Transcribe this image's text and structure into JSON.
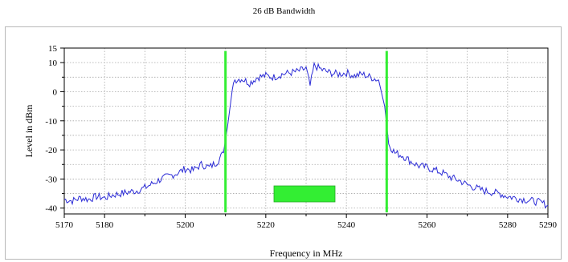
{
  "chart_data": {
    "type": "line",
    "title": "26 dB Bandwidth",
    "xlabel": "Frequency in MHz",
    "ylabel": "Level in dBm",
    "xlim": [
      5170,
      5290
    ],
    "ylim": [
      -42,
      15
    ],
    "x_ticks": [
      5170,
      5180,
      5200,
      5220,
      5240,
      5260,
      5280,
      5290
    ],
    "x_tick_labels": [
      "5170",
      "5180",
      "5200",
      "5220",
      "5240",
      "5260",
      "5280",
      "5290"
    ],
    "x_minor_ticks": [
      5190,
      5210,
      5230,
      5250,
      5270
    ],
    "y_ticks": [
      15,
      10,
      0,
      -10,
      -20,
      -30,
      -40
    ],
    "y_tick_labels": [
      "15",
      "10",
      "0",
      "-10",
      "-20",
      "-30",
      "-40"
    ],
    "y_minor_ticks": [
      5,
      -5,
      -15,
      -25,
      -35
    ],
    "grid": true,
    "series": [
      {
        "color": "#2b2bd6",
        "x": [
          5170,
          5172,
          5174,
          5176,
          5178,
          5180,
          5182,
          5184,
          5186,
          5188,
          5190,
          5192,
          5194,
          5196,
          5198,
          5200,
          5202,
          5204,
          5206,
          5208,
          5209.5,
          5210.5,
          5212,
          5214,
          5216,
          5218,
          5220,
          5222,
          5224,
          5226,
          5228,
          5230,
          5231,
          5232,
          5234,
          5236,
          5238,
          5240,
          5242,
          5244,
          5246,
          5248,
          5249.5,
          5250.5,
          5252,
          5254,
          5256,
          5258,
          5260,
          5262,
          5264,
          5266,
          5268,
          5270,
          5272,
          5274,
          5276,
          5278,
          5280,
          5282,
          5284,
          5286,
          5288,
          5290
        ],
        "y": [
          -37,
          -37.5,
          -36.5,
          -37,
          -36,
          -36.5,
          -35.5,
          -35,
          -34.5,
          -34,
          -33,
          -31.5,
          -30,
          -29,
          -28,
          -26.5,
          -27,
          -25,
          -26,
          -24,
          -21,
          -12,
          4,
          4.5,
          3,
          5,
          5.5,
          5,
          6,
          6.5,
          7,
          8,
          2,
          9,
          7.5,
          6.5,
          6,
          6.5,
          5.5,
          6,
          5,
          4,
          -5,
          -18,
          -21,
          -22,
          -24,
          -25.5,
          -26,
          -27,
          -28,
          -29.5,
          -30.5,
          -32,
          -33,
          -34,
          -34.5,
          -35,
          -36,
          -36.5,
          -37,
          -37.5,
          -38,
          -39
        ]
      }
    ],
    "markers": [
      {
        "x": 5210,
        "color": "#33ee33"
      },
      {
        "x": 5250,
        "color": "#33ee33"
      }
    ],
    "annotation_box": {
      "color": "#33ee33"
    }
  }
}
